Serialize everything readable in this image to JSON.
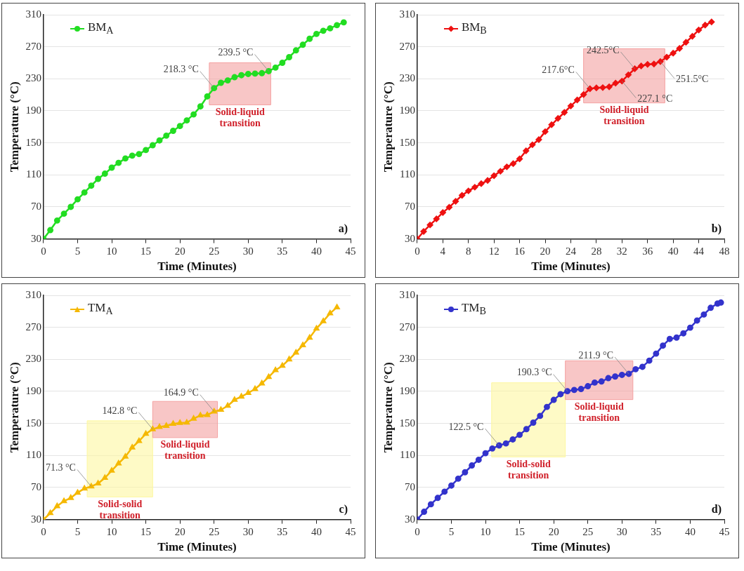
{
  "chart_data": [
    {
      "type": "line",
      "xlabel": "Time (Minutes)",
      "ylabel": "Temperature (°C)",
      "xlim": [
        0,
        45
      ],
      "xticks": [
        0,
        5,
        10,
        15,
        20,
        25,
        30,
        35,
        40,
        45
      ],
      "ylim": [
        30,
        310
      ],
      "yticks": [
        30,
        70,
        110,
        150,
        190,
        230,
        270,
        310
      ],
      "grid": "y",
      "legend": "top left",
      "marker": "circle",
      "line_style": "solid",
      "x": [
        0,
        1,
        2,
        3,
        4,
        5,
        6,
        7,
        8,
        9,
        10,
        11,
        12,
        13,
        14,
        15,
        16,
        17,
        18,
        19,
        20,
        21,
        22,
        23,
        24,
        25,
        26,
        27,
        28,
        29,
        30,
        31,
        32,
        33,
        34,
        35,
        36,
        37,
        38,
        39,
        40,
        41,
        42,
        43,
        44
      ],
      "series": [
        {
          "name": "BM$_{A}$",
          "color": "#22dd22",
          "values": [
            30,
            41,
            53,
            61.5,
            70,
            79.5,
            88,
            96.5,
            105,
            111.5,
            119,
            125,
            130.5,
            134,
            136,
            141,
            147,
            153,
            159,
            165,
            171,
            178,
            185.5,
            195.5,
            208,
            218.3,
            225,
            228,
            232,
            234.5,
            236,
            236.5,
            237,
            239.5,
            244,
            250,
            257,
            265.5,
            272.5,
            280,
            286,
            290,
            293,
            297,
            300.5
          ]
        }
      ],
      "bands": [
        {
          "axis": "x",
          "from": 24.3,
          "to": 33.3,
          "label": "Solid-liquid transition",
          "color": "#f4a0a0"
        }
      ],
      "annotations": [
        {
          "text": "218.3 °C",
          "x": 25,
          "y": 218.3
        },
        {
          "text": "239.5 °C",
          "x": 33,
          "y": 239.5
        },
        "a)"
      ]
    },
    {
      "type": "line",
      "xlabel": "Time (Minutes)",
      "ylabel": "Temperature (°C)",
      "xlim": [
        0,
        48
      ],
      "xticks": [
        0,
        4,
        8,
        12,
        16,
        20,
        24,
        28,
        32,
        36,
        40,
        44,
        48
      ],
      "ylim": [
        30,
        310
      ],
      "yticks": [
        30,
        70,
        110,
        150,
        190,
        230,
        270,
        310
      ],
      "grid": "y",
      "legend": "top left",
      "marker": "diamond",
      "line_style": "solid",
      "x": [
        0,
        1,
        2,
        3,
        4,
        5,
        6,
        7,
        8,
        9,
        10,
        11,
        12,
        13,
        14,
        15,
        16,
        17,
        18,
        19,
        20,
        21,
        22,
        23,
        24,
        25,
        26,
        27,
        28,
        29,
        30,
        31,
        32,
        33,
        34,
        35,
        36,
        37,
        38,
        39,
        40,
        41,
        42,
        43,
        44,
        45,
        46
      ],
      "series": [
        {
          "name": "BM$_{B}$",
          "color": "#ee1111",
          "values": [
            30,
            39.3,
            47.5,
            55,
            63,
            69.6,
            77,
            84.4,
            90,
            94.6,
            99,
            103,
            109,
            114.5,
            120,
            124,
            130,
            140,
            147.6,
            154,
            164,
            172.6,
            180.5,
            188,
            196,
            203.5,
            210.4,
            217.6,
            218.6,
            219,
            220,
            224.5,
            227.1,
            235,
            242.5,
            246,
            248,
            248.5,
            251.5,
            257,
            262,
            268,
            275.6,
            283,
            291,
            297,
            301
          ]
        }
      ],
      "bands": [
        {
          "axis": "x",
          "from": 26,
          "to": 38.7,
          "label": "Solid-liquid transition",
          "color": "#f4a0a0"
        }
      ],
      "annotations": [
        {
          "text": "217.6°C",
          "x": 27,
          "y": 217.6
        },
        {
          "text": "227.1 °C",
          "x": 32,
          "y": 227.1
        },
        {
          "text": "242.5°C",
          "x": 34,
          "y": 242.5
        },
        {
          "text": "251.5°C",
          "x": 38,
          "y": 251.5
        },
        "b)"
      ]
    },
    {
      "type": "line",
      "xlabel": "Time (Minutes)",
      "ylabel": "Temperature (°C)",
      "xlim": [
        0,
        45
      ],
      "xticks": [
        0,
        5,
        10,
        15,
        20,
        25,
        30,
        35,
        40,
        45
      ],
      "ylim": [
        30,
        310
      ],
      "yticks": [
        30,
        70,
        110,
        150,
        190,
        230,
        270,
        310
      ],
      "grid": "y",
      "legend": "top left",
      "marker": "triangle",
      "line_style": "solid",
      "x": [
        0,
        1,
        2,
        3,
        4,
        5,
        6,
        7,
        8,
        9,
        10,
        11,
        12,
        13,
        14,
        15,
        16,
        17,
        18,
        19,
        20,
        21,
        22,
        23,
        24,
        25,
        26,
        27,
        28,
        29,
        30,
        31,
        32,
        33,
        34,
        35,
        36,
        37,
        38,
        39,
        40,
        41,
        42,
        43
      ],
      "series": [
        {
          "name": "TM$_{A}$",
          "color": "#f5b800",
          "values": [
            30,
            38,
            46.7,
            53,
            57,
            63.5,
            68.7,
            71.3,
            75,
            82,
            91,
            100,
            108.5,
            120,
            128,
            137,
            142.8,
            145.5,
            147,
            149.5,
            150.6,
            151,
            156,
            160,
            160.5,
            164.9,
            167,
            172,
            179.5,
            183.6,
            188,
            193,
            200,
            208,
            216.5,
            222,
            230,
            238.5,
            247.7,
            257,
            268.5,
            277.7,
            287.5,
            295
          ]
        }
      ],
      "bands": [
        {
          "axis": "x",
          "from": 6.4,
          "to": 16,
          "label": "Solid-solid transition",
          "color": "#fdf7a0"
        },
        {
          "axis": "x",
          "from": 16,
          "to": 25.5,
          "label": "Solid-liquid transition",
          "color": "#f4a0a0"
        }
      ],
      "annotations": [
        {
          "text": "71.3 °C",
          "x": 7,
          "y": 71.3
        },
        {
          "text": "142.8 °C",
          "x": 16,
          "y": 142.8
        },
        {
          "text": "164.9 °C",
          "x": 25,
          "y": 164.9
        },
        "c)"
      ]
    },
    {
      "type": "line",
      "xlabel": "Time (Minutes)",
      "ylabel": "Temperature (°C)",
      "xlim": [
        0,
        45
      ],
      "xticks": [
        0,
        5,
        10,
        15,
        20,
        25,
        30,
        35,
        40,
        45
      ],
      "ylim": [
        30,
        310
      ],
      "yticks": [
        30,
        70,
        110,
        150,
        190,
        230,
        270,
        310
      ],
      "grid": "y",
      "legend": "top left",
      "marker": "circle",
      "line_style": "solid",
      "x": [
        0,
        1,
        2,
        3,
        4,
        5,
        6,
        7,
        8,
        9,
        10,
        11,
        12,
        13,
        14,
        15,
        16,
        17,
        18,
        19,
        20,
        21,
        22,
        23,
        24,
        25,
        26,
        27,
        28,
        29,
        30,
        31,
        32,
        33,
        34,
        35,
        36,
        37,
        38,
        39,
        40,
        41,
        42,
        43,
        44,
        44.5
      ],
      "series": [
        {
          "name": "TM$_{B}$",
          "color": "#3333cc",
          "values": [
            30,
            39.7,
            49,
            57,
            64.8,
            72.4,
            81,
            89,
            97.5,
            104.6,
            112.8,
            118.7,
            122.5,
            125,
            130,
            135.8,
            142.9,
            151,
            159.4,
            170.6,
            179.4,
            186.5,
            190.3,
            191.8,
            193,
            196.5,
            201,
            202.4,
            206.6,
            208.6,
            210.6,
            211.9,
            217.7,
            220.7,
            228.4,
            237.2,
            247.2,
            255.5,
            257.2,
            262.5,
            269.6,
            278.5,
            286,
            294.4,
            299.7,
            301
          ]
        }
      ],
      "bands": [
        {
          "axis": "x",
          "from": 10.9,
          "to": 21.7,
          "label": "Solid-solid transition",
          "color": "#fdf7a0"
        },
        {
          "axis": "x",
          "from": 21.7,
          "to": 31.6,
          "label": "Solid-liquid transition",
          "color": "#f4a0a0"
        }
      ],
      "annotations": [
        {
          "text": "122.5 °C",
          "x": 12,
          "y": 122.5
        },
        {
          "text": "190.3 °C",
          "x": 22,
          "y": 190.3
        },
        {
          "text": "211.9 °C",
          "x": 31,
          "y": 211.9
        },
        "d)"
      ]
    }
  ]
}
